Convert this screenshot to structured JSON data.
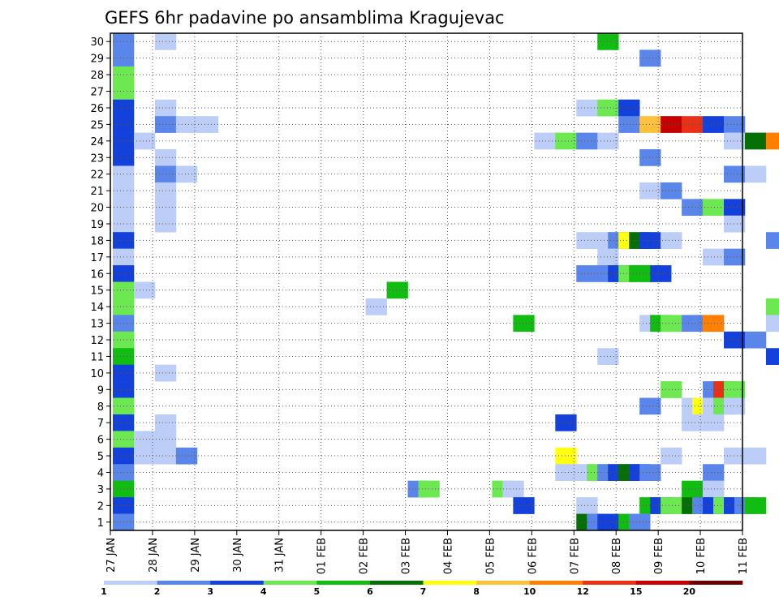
{
  "chart_data": {
    "type": "heatmap",
    "title": "GEFS 6hr padavine po ansamblima Kragujevac",
    "xlabel": "",
    "ylabel": "",
    "x_tick_labels": [
      "27 JAN",
      "28 JAN",
      "29 JAN",
      "30 JAN",
      "31 JAN",
      "01 FEB",
      "02 FEB",
      "03 FEB",
      "04 FEB",
      "05 FEB",
      "06 FEB",
      "07 FEB",
      "08 FEB",
      "09 FEB",
      "10 FEB",
      "11 FEB"
    ],
    "y_tick_labels": [
      "1",
      "2",
      "3",
      "4",
      "5",
      "6",
      "7",
      "8",
      "9",
      "10",
      "11",
      "12",
      "13",
      "14",
      "15",
      "16",
      "17",
      "18",
      "19",
      "20",
      "21",
      "22",
      "23",
      "24",
      "25",
      "26",
      "27",
      "28",
      "29",
      "30"
    ],
    "ylim": [
      0.5,
      30.5
    ],
    "time_step_hours": 6,
    "grid": true,
    "legend_position": "bottom",
    "colorbar": {
      "labels": [
        "1",
        "2",
        "3",
        "4",
        "5",
        "6",
        "7",
        "8",
        "10",
        "12",
        "15",
        "20"
      ],
      "colors": [
        "#bccdf7",
        "#5a86ec",
        "#1440dc",
        "#6ce851",
        "#11bd11",
        "#067006",
        "#ffff10",
        "#ffc13b",
        "#ff7f00",
        "#ea3116",
        "#c60000",
        "#6b0000"
      ]
    },
    "cells": [
      {
        "m": 30,
        "s": [
          [
            0,
            2
          ],
          [
            2,
            1
          ],
          [
            23,
            5
          ]
        ]
      },
      {
        "m": 29,
        "s": [
          [
            0,
            2
          ],
          [
            25,
            2
          ]
        ]
      },
      {
        "m": 28,
        "s": [
          [
            0,
            4
          ]
        ]
      },
      {
        "m": 27,
        "s": [
          [
            0,
            4
          ]
        ]
      },
      {
        "m": 26,
        "s": [
          [
            0,
            3
          ],
          [
            2,
            1
          ],
          [
            22,
            1
          ],
          [
            23,
            4
          ],
          [
            24,
            3
          ]
        ]
      },
      {
        "m": 25,
        "s": [
          [
            0,
            3
          ],
          [
            2,
            2
          ],
          [
            3,
            1
          ],
          [
            4,
            1
          ],
          [
            24,
            2
          ],
          [
            25,
            8
          ],
          [
            26,
            11
          ],
          [
            27,
            10
          ],
          [
            28,
            3
          ],
          [
            29,
            2
          ]
        ]
      },
      {
        "m": 24,
        "s": [
          [
            0,
            3
          ],
          [
            1,
            1
          ],
          [
            20,
            1
          ],
          [
            21,
            4
          ],
          [
            22,
            2
          ],
          [
            23,
            1
          ],
          [
            29,
            1
          ],
          [
            30,
            6
          ],
          [
            31,
            9
          ]
        ]
      },
      {
        "m": 23,
        "s": [
          [
            0,
            3
          ],
          [
            2,
            1
          ],
          [
            25,
            2
          ]
        ]
      },
      {
        "m": 22,
        "s": [
          [
            0,
            1
          ],
          [
            2,
            2
          ],
          [
            3,
            1
          ],
          [
            29,
            2
          ],
          [
            30,
            1
          ]
        ]
      },
      {
        "m": 21,
        "s": [
          [
            0,
            1
          ],
          [
            2,
            1
          ],
          [
            25,
            1
          ],
          [
            26,
            2
          ]
        ]
      },
      {
        "m": 20,
        "s": [
          [
            0,
            1
          ],
          [
            2,
            1
          ],
          [
            27,
            2
          ],
          [
            28,
            4
          ],
          [
            29,
            3
          ]
        ]
      },
      {
        "m": 19,
        "s": [
          [
            0,
            1
          ],
          [
            2,
            1
          ],
          [
            29,
            1
          ]
        ]
      },
      {
        "m": 18,
        "s": [
          [
            0,
            3
          ],
          [
            22,
            1
          ],
          [
            23,
            1
          ],
          [
            23.5,
            2
          ],
          [
            24,
            7
          ],
          [
            24.5,
            6
          ],
          [
            25,
            3
          ],
          [
            26,
            1
          ],
          [
            31,
            2
          ]
        ]
      },
      {
        "m": 17,
        "s": [
          [
            0,
            1
          ],
          [
            23,
            1
          ],
          [
            28,
            1
          ],
          [
            29,
            2
          ]
        ]
      },
      {
        "m": 16,
        "s": [
          [
            0,
            3
          ],
          [
            22,
            2
          ],
          [
            23,
            2
          ],
          [
            23.5,
            3
          ],
          [
            24,
            4
          ],
          [
            24.5,
            5
          ],
          [
            25,
            5
          ],
          [
            25.5,
            3
          ]
        ]
      },
      {
        "m": 15,
        "s": [
          [
            0,
            4
          ],
          [
            1,
            1
          ],
          [
            13,
            5
          ]
        ]
      },
      {
        "m": 14,
        "s": [
          [
            0,
            4
          ],
          [
            12,
            1
          ],
          [
            31,
            4
          ]
        ]
      },
      {
        "m": 13,
        "s": [
          [
            0,
            2
          ],
          [
            19,
            5
          ],
          [
            25,
            1
          ],
          [
            25.5,
            5
          ],
          [
            26,
            4
          ],
          [
            27,
            2
          ],
          [
            28,
            9
          ],
          [
            31,
            1
          ]
        ]
      },
      {
        "m": 12,
        "s": [
          [
            0,
            4
          ],
          [
            29,
            3
          ],
          [
            30,
            2
          ]
        ]
      },
      {
        "m": 11,
        "s": [
          [
            0,
            5
          ],
          [
            23,
            1
          ],
          [
            31,
            3
          ]
        ]
      },
      {
        "m": 10,
        "s": [
          [
            0,
            3
          ],
          [
            2,
            1
          ]
        ]
      },
      {
        "m": 9,
        "s": [
          [
            0,
            3
          ],
          [
            26,
            4
          ],
          [
            28,
            2
          ],
          [
            28.5,
            10
          ],
          [
            29,
            4
          ]
        ]
      },
      {
        "m": 8,
        "s": [
          [
            0,
            4
          ],
          [
            25,
            2
          ],
          [
            27,
            1
          ],
          [
            27.5,
            7
          ],
          [
            28,
            1
          ],
          [
            28.5,
            4
          ],
          [
            29,
            1
          ]
        ]
      },
      {
        "m": 7,
        "s": [
          [
            0,
            3
          ],
          [
            2,
            1
          ],
          [
            21,
            3
          ],
          [
            27,
            1
          ],
          [
            28,
            1
          ]
        ]
      },
      {
        "m": 6,
        "s": [
          [
            0,
            4
          ],
          [
            1,
            1
          ],
          [
            2,
            1
          ]
        ]
      },
      {
        "m": 5,
        "s": [
          [
            0,
            3
          ],
          [
            1,
            1
          ],
          [
            2,
            1
          ],
          [
            3,
            2
          ],
          [
            21,
            7
          ],
          [
            26,
            1
          ],
          [
            29,
            1
          ],
          [
            30,
            1
          ]
        ]
      },
      {
        "m": 4,
        "s": [
          [
            0,
            2
          ],
          [
            21,
            1
          ],
          [
            22,
            1
          ],
          [
            22.5,
            4
          ],
          [
            23,
            2
          ],
          [
            23.5,
            3
          ],
          [
            24,
            6
          ],
          [
            24.5,
            3
          ],
          [
            25,
            2
          ],
          [
            28,
            2
          ]
        ]
      },
      {
        "m": 3,
        "s": [
          [
            0,
            5
          ],
          [
            14,
            2
          ],
          [
            14.5,
            4
          ],
          [
            18,
            4
          ],
          [
            18.5,
            1
          ],
          [
            27,
            5
          ],
          [
            28,
            1
          ]
        ]
      },
      {
        "m": 2,
        "s": [
          [
            0,
            3
          ],
          [
            19,
            3
          ],
          [
            22,
            1
          ],
          [
            25,
            5
          ],
          [
            25.5,
            3
          ],
          [
            26,
            4
          ],
          [
            26.5,
            4
          ],
          [
            27,
            6
          ],
          [
            27.5,
            2
          ],
          [
            28,
            3
          ],
          [
            28.5,
            4
          ],
          [
            29,
            3
          ],
          [
            29.5,
            2
          ],
          [
            30,
            5
          ]
        ]
      },
      {
        "m": 1,
        "s": [
          [
            0,
            2
          ],
          [
            22,
            6
          ],
          [
            22.5,
            2
          ],
          [
            23,
            3
          ],
          [
            24,
            5
          ],
          [
            24.5,
            2
          ]
        ]
      }
    ]
  }
}
